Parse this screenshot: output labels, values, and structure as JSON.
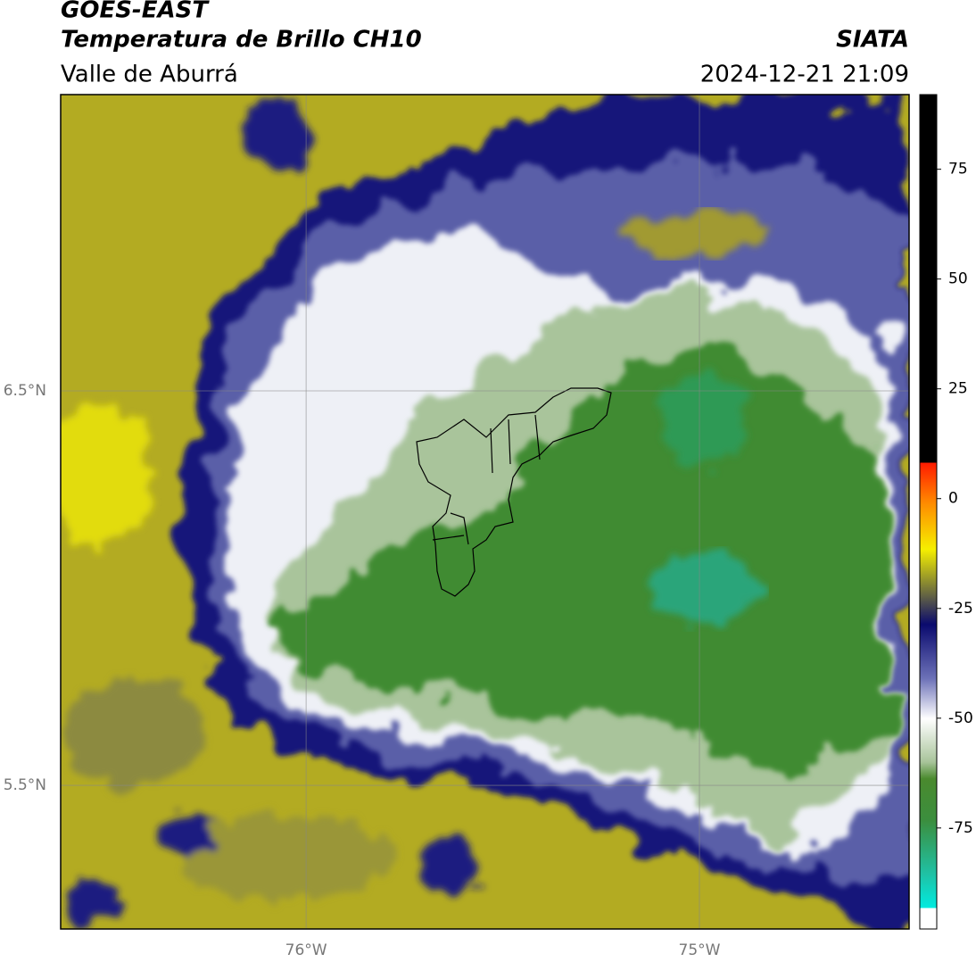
{
  "header": {
    "satellite": "GOES-EAST",
    "product": "Temperatura de Brillo CH10",
    "region": "Valle de Aburrá",
    "agency": "SIATA",
    "datetime": "2024-12-21 21:09"
  },
  "map": {
    "xlim": [
      -76.624,
      -74.467
    ],
    "ylim": [
      5.136,
      7.251
    ],
    "xticks": [
      {
        "value": -76,
        "label": "76°W"
      },
      {
        "value": -75,
        "label": "75°W"
      }
    ],
    "yticks": [
      {
        "value": 6.5,
        "label": "6.5°N"
      },
      {
        "value": 5.5,
        "label": "5.5°N"
      }
    ]
  },
  "colorbar": {
    "lim": [
      -98,
      92
    ],
    "ticks": [
      75,
      50,
      25,
      0,
      -25,
      -50,
      -75
    ]
  }
}
